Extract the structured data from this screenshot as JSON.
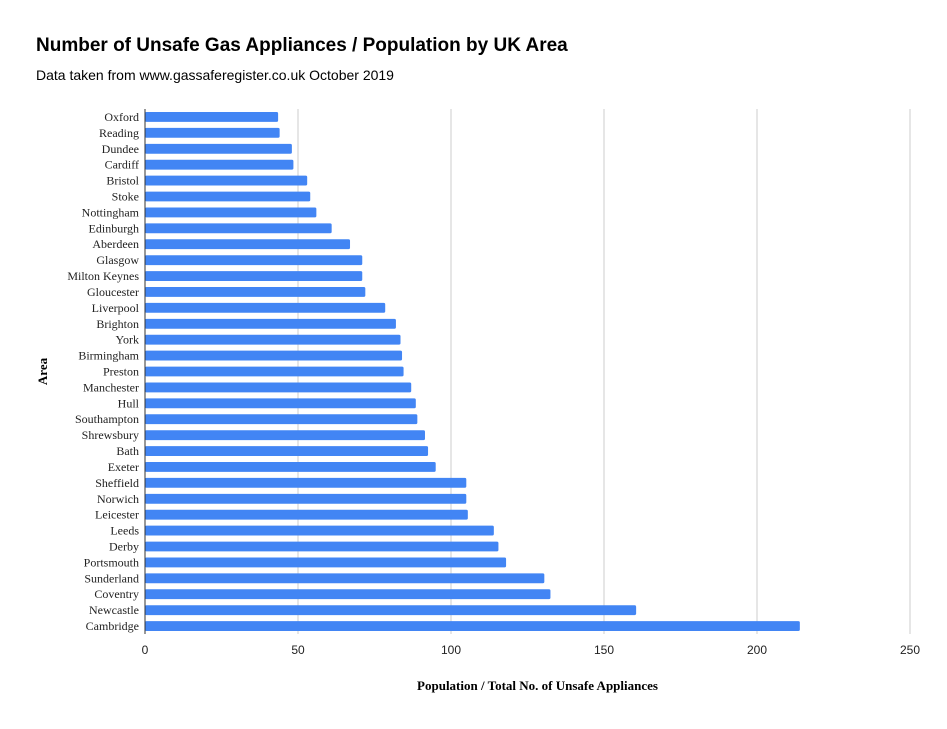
{
  "title": "Number of Unsafe Gas Appliances / Population by UK Area",
  "subtitle": "Data taken from www.gassaferegister.co.uk October 2019",
  "colors": {
    "bar": "#4285f4",
    "grid": "#cccccc",
    "axis": "#333333"
  },
  "chart_data": {
    "type": "bar",
    "orientation": "horizontal",
    "xlabel": "Population / Total No. of Unsafe Appliances",
    "ylabel": "Area",
    "xlim": [
      0,
      250
    ],
    "xticks": [
      0,
      50,
      100,
      150,
      200,
      250
    ],
    "grid": true,
    "legend": "none",
    "categories": [
      "Oxford",
      "Reading",
      "Dundee",
      "Cardiff",
      "Bristol",
      "Stoke",
      "Nottingham",
      "Edinburgh",
      "Aberdeen",
      "Glasgow",
      "Milton Keynes",
      "Gloucester",
      "Liverpool",
      "Brighton",
      "York",
      "Birmingham",
      "Preston",
      "Manchester",
      "Hull",
      "Southampton",
      "Shrewsbury",
      "Bath",
      "Exeter",
      "Sheffield",
      "Norwich",
      "Leicester",
      "Leeds",
      "Derby",
      "Portsmouth",
      "Sunderland",
      "Coventry",
      "Newcastle",
      "Cambridge"
    ],
    "values": [
      43.5,
      44,
      48,
      48.5,
      53,
      54,
      56,
      61,
      67,
      71,
      71,
      72,
      78.5,
      82,
      83.5,
      84,
      84.5,
      87,
      88.5,
      89,
      91.5,
      92.5,
      95,
      105,
      105,
      105.5,
      114,
      115.5,
      118,
      130.5,
      132.5,
      160.5,
      214
    ]
  }
}
